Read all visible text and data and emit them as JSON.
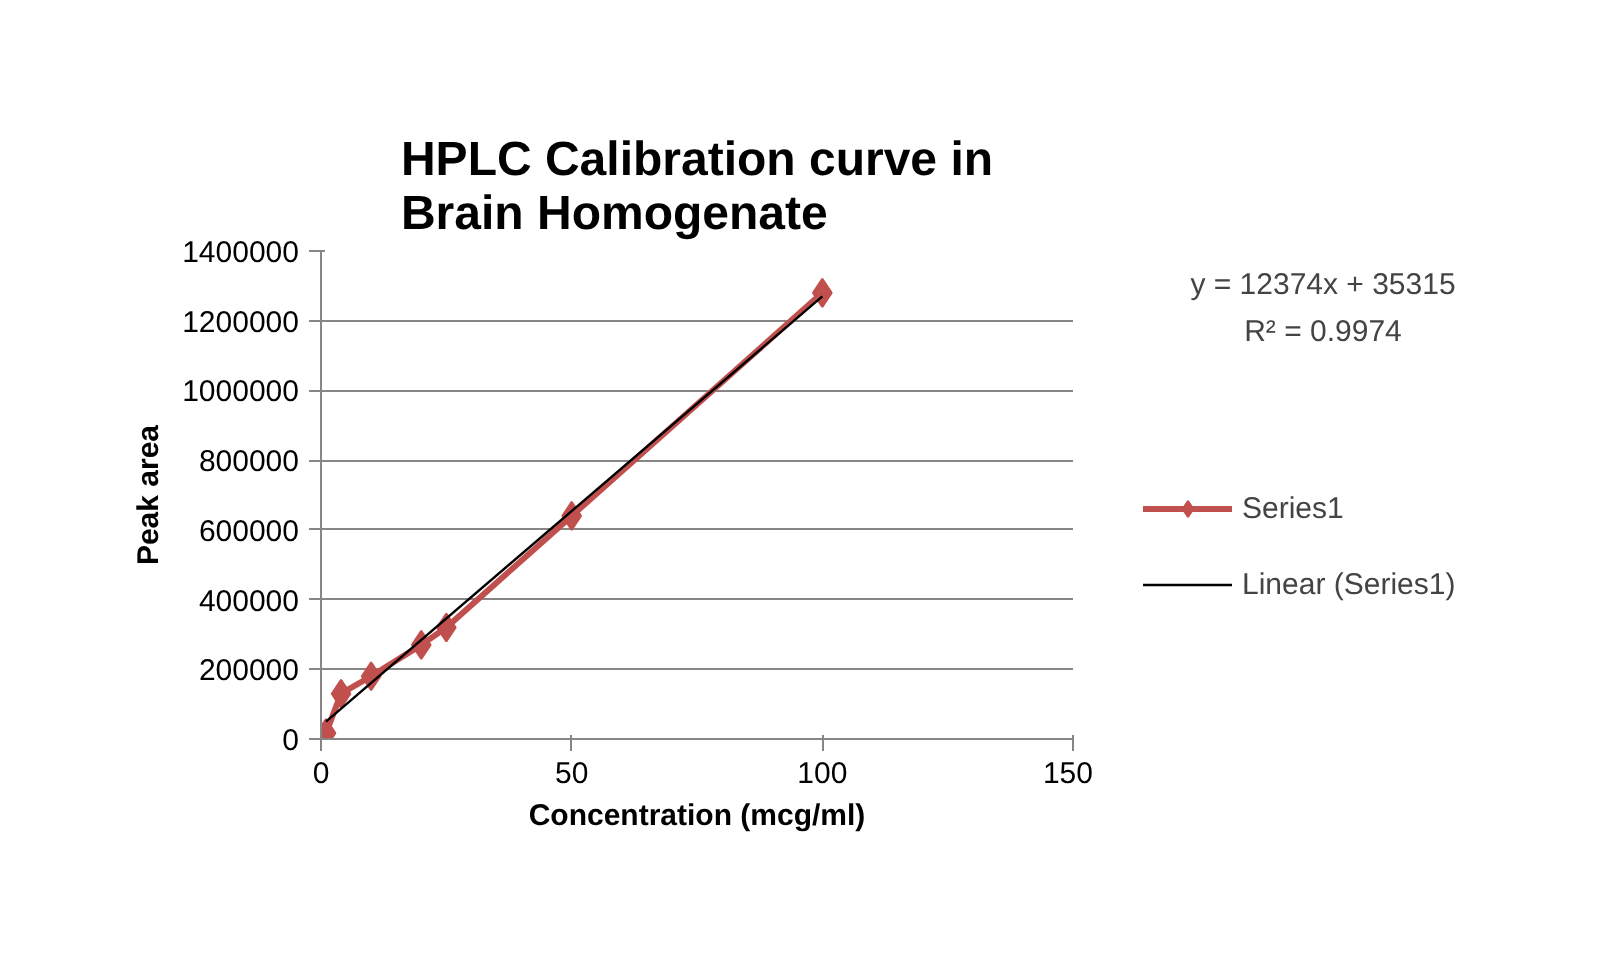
{
  "chart_data": {
    "type": "line",
    "title": "HPLC Calibration curve in Brain Homogenate",
    "xlabel": "Concentration (mcg/ml)",
    "ylabel": "Peak area",
    "xlim": [
      0,
      150
    ],
    "xticks": [
      0,
      50,
      100,
      150
    ],
    "ylim": [
      0,
      1400000
    ],
    "yticks": [
      0,
      200000,
      400000,
      600000,
      800000,
      1000000,
      1200000,
      1400000
    ],
    "grid": "y",
    "legend": "right",
    "series": [
      {
        "name": "Series1",
        "color": "#c0504d",
        "marker": "diamond",
        "x": [
          1,
          4,
          10,
          20,
          25,
          50,
          100
        ],
        "values": [
          17000,
          130000,
          180000,
          270000,
          320000,
          640000,
          1280000
        ]
      },
      {
        "name": "Linear (Series1)",
        "color": "#000000",
        "marker": "none",
        "x": [
          1,
          100
        ],
        "values": [
          50000,
          1270000
        ]
      }
    ],
    "annotations": [
      "y = 12374x + 35315",
      "R² = 0.9974"
    ]
  }
}
